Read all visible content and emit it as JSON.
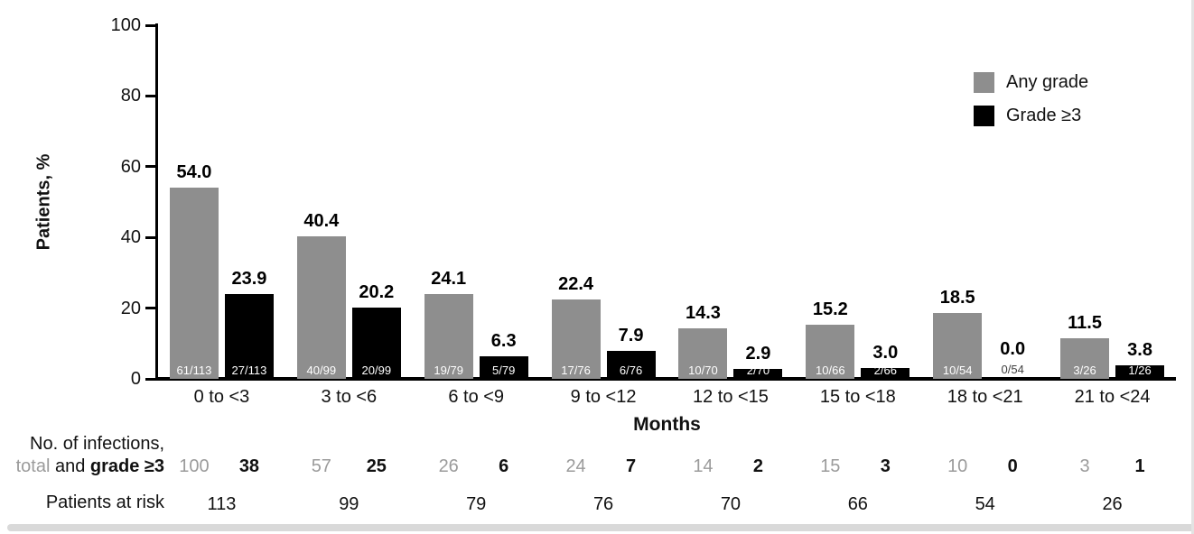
{
  "colors": {
    "any_grade": "#8e8e8e",
    "grade3": "#000000",
    "muted_text": "#9b9b9b",
    "frame_edge": "#d9d9d9"
  },
  "chart_data": {
    "type": "bar",
    "title": "",
    "ylabel": "Patients, %",
    "xlabel": "Months",
    "ylim": [
      0,
      100
    ],
    "yticks": [
      "0",
      "20",
      "40",
      "60",
      "80",
      "100"
    ],
    "grid": false,
    "legend_position": "top-right",
    "categories": [
      "0 to <3",
      "3 to <6",
      "6 to <9",
      "9 to <12",
      "12 to <15",
      "15 to <18",
      "18 to <21",
      "21 to <24"
    ],
    "series": [
      {
        "name": "Any grade",
        "color": "#8e8e8e",
        "values": [
          54.0,
          40.4,
          24.1,
          22.4,
          14.3,
          15.2,
          18.5,
          11.5
        ],
        "value_labels": [
          "54.0",
          "40.4",
          "24.1",
          "22.4",
          "14.3",
          "15.2",
          "18.5",
          "11.5"
        ],
        "fractions": [
          "61/113",
          "40/99",
          "19/79",
          "17/76",
          "10/70",
          "10/66",
          "10/54",
          "3/26"
        ]
      },
      {
        "name": "Grade ≥3",
        "color": "#000000",
        "values": [
          23.9,
          20.2,
          6.3,
          7.9,
          2.9,
          3.0,
          0.0,
          3.8
        ],
        "value_labels": [
          "23.9",
          "20.2",
          "6.3",
          "7.9",
          "2.9",
          "3.0",
          "0.0",
          "3.8"
        ],
        "fractions": [
          "27/113",
          "20/99",
          "5/79",
          "6/76",
          "2/70",
          "2/66",
          "0/54",
          "1/26"
        ]
      }
    ],
    "table": {
      "infections_label_line1": "No. of infections,",
      "infections_label_total": "total",
      "infections_label_and": " and ",
      "infections_label_grade": "grade ≥3",
      "patients_label": "Patients at risk",
      "infections_total": [
        "100",
        "57",
        "26",
        "24",
        "14",
        "15",
        "10",
        "3"
      ],
      "infections_grade3": [
        "38",
        "25",
        "6",
        "7",
        "2",
        "3",
        "0",
        "1"
      ],
      "patients_at_risk": [
        "113",
        "99",
        "79",
        "76",
        "70",
        "66",
        "54",
        "26"
      ]
    }
  }
}
